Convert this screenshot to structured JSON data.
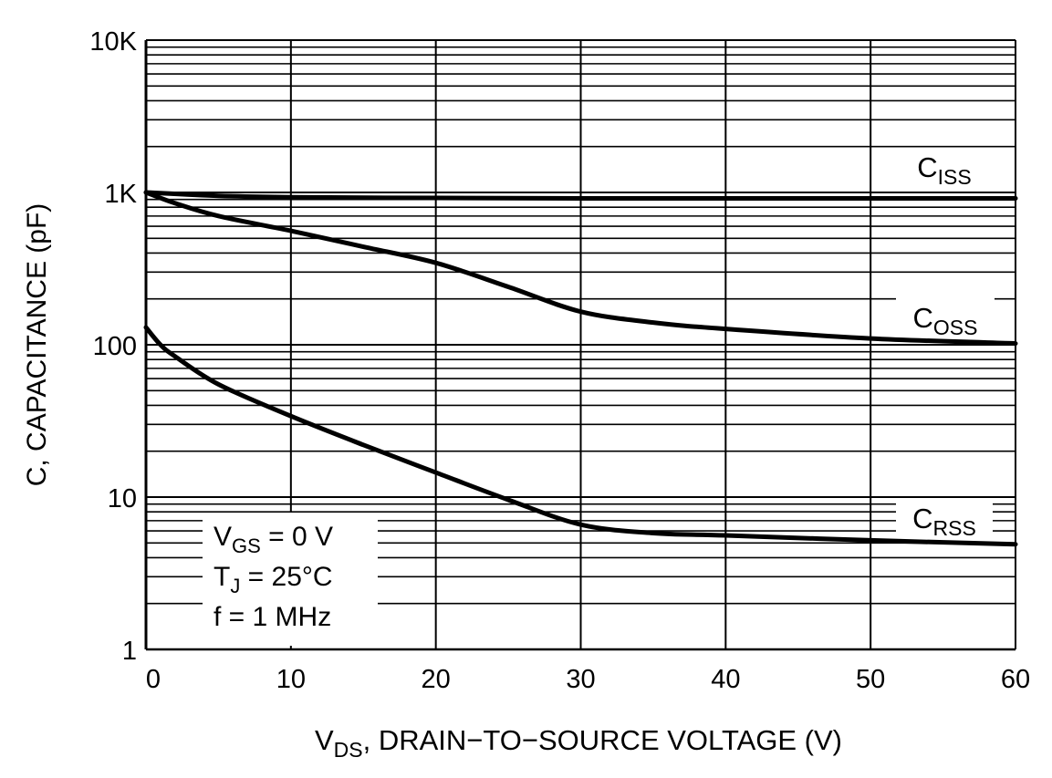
{
  "chart_data": {
    "type": "line",
    "xlabel": {
      "main": "V",
      "sub": "DS",
      "rest": ", DRAIN−TO−SOURCE VOLTAGE (V)"
    },
    "ylabel": "C, CAPACITANCE (pF)",
    "xlim": [
      0,
      60
    ],
    "ylim": [
      1,
      10000
    ],
    "yscale": "log",
    "grid": true,
    "x_ticks": [
      0,
      10,
      20,
      30,
      40,
      50,
      60
    ],
    "x_tick_labels": [
      "0",
      "10",
      "20",
      "30",
      "40",
      "50",
      "60"
    ],
    "y_ticks": [
      1,
      10,
      100,
      1000,
      10000
    ],
    "y_tick_labels": [
      "1",
      "10",
      "100",
      "1K",
      "10K"
    ],
    "line_color": "#000000",
    "series": [
      {
        "name": "ISS",
        "label_main": "C",
        "label_sub": "ISS",
        "x": [
          0,
          5,
          10,
          20,
          30,
          40,
          50,
          60
        ],
        "y": [
          1000,
          950,
          930,
          920,
          915,
          915,
          915,
          915
        ]
      },
      {
        "name": "OSS",
        "label_main": "C",
        "label_sub": "OSS",
        "x": [
          0,
          2,
          5,
          10,
          15,
          20,
          25,
          30,
          35,
          40,
          50,
          60
        ],
        "y": [
          1000,
          850,
          700,
          560,
          440,
          345,
          240,
          165,
          140,
          127,
          110,
          102
        ]
      },
      {
        "name": "RSS",
        "label_main": "C",
        "label_sub": "RSS",
        "x": [
          0,
          1,
          2,
          5,
          10,
          15,
          20,
          25,
          30,
          35,
          40,
          50,
          60
        ],
        "y": [
          130,
          100,
          84,
          55,
          34,
          22,
          14.5,
          9.6,
          6.6,
          5.8,
          5.6,
          5.2,
          4.9
        ]
      }
    ],
    "annotation": {
      "lines": [
        {
          "main": "V",
          "sub": "GS",
          "rest": " = 0 V"
        },
        {
          "main": "T",
          "sub": "J",
          "rest": " = 25°C"
        },
        {
          "main": "f = 1 MHz",
          "sub": "",
          "rest": ""
        }
      ]
    }
  }
}
